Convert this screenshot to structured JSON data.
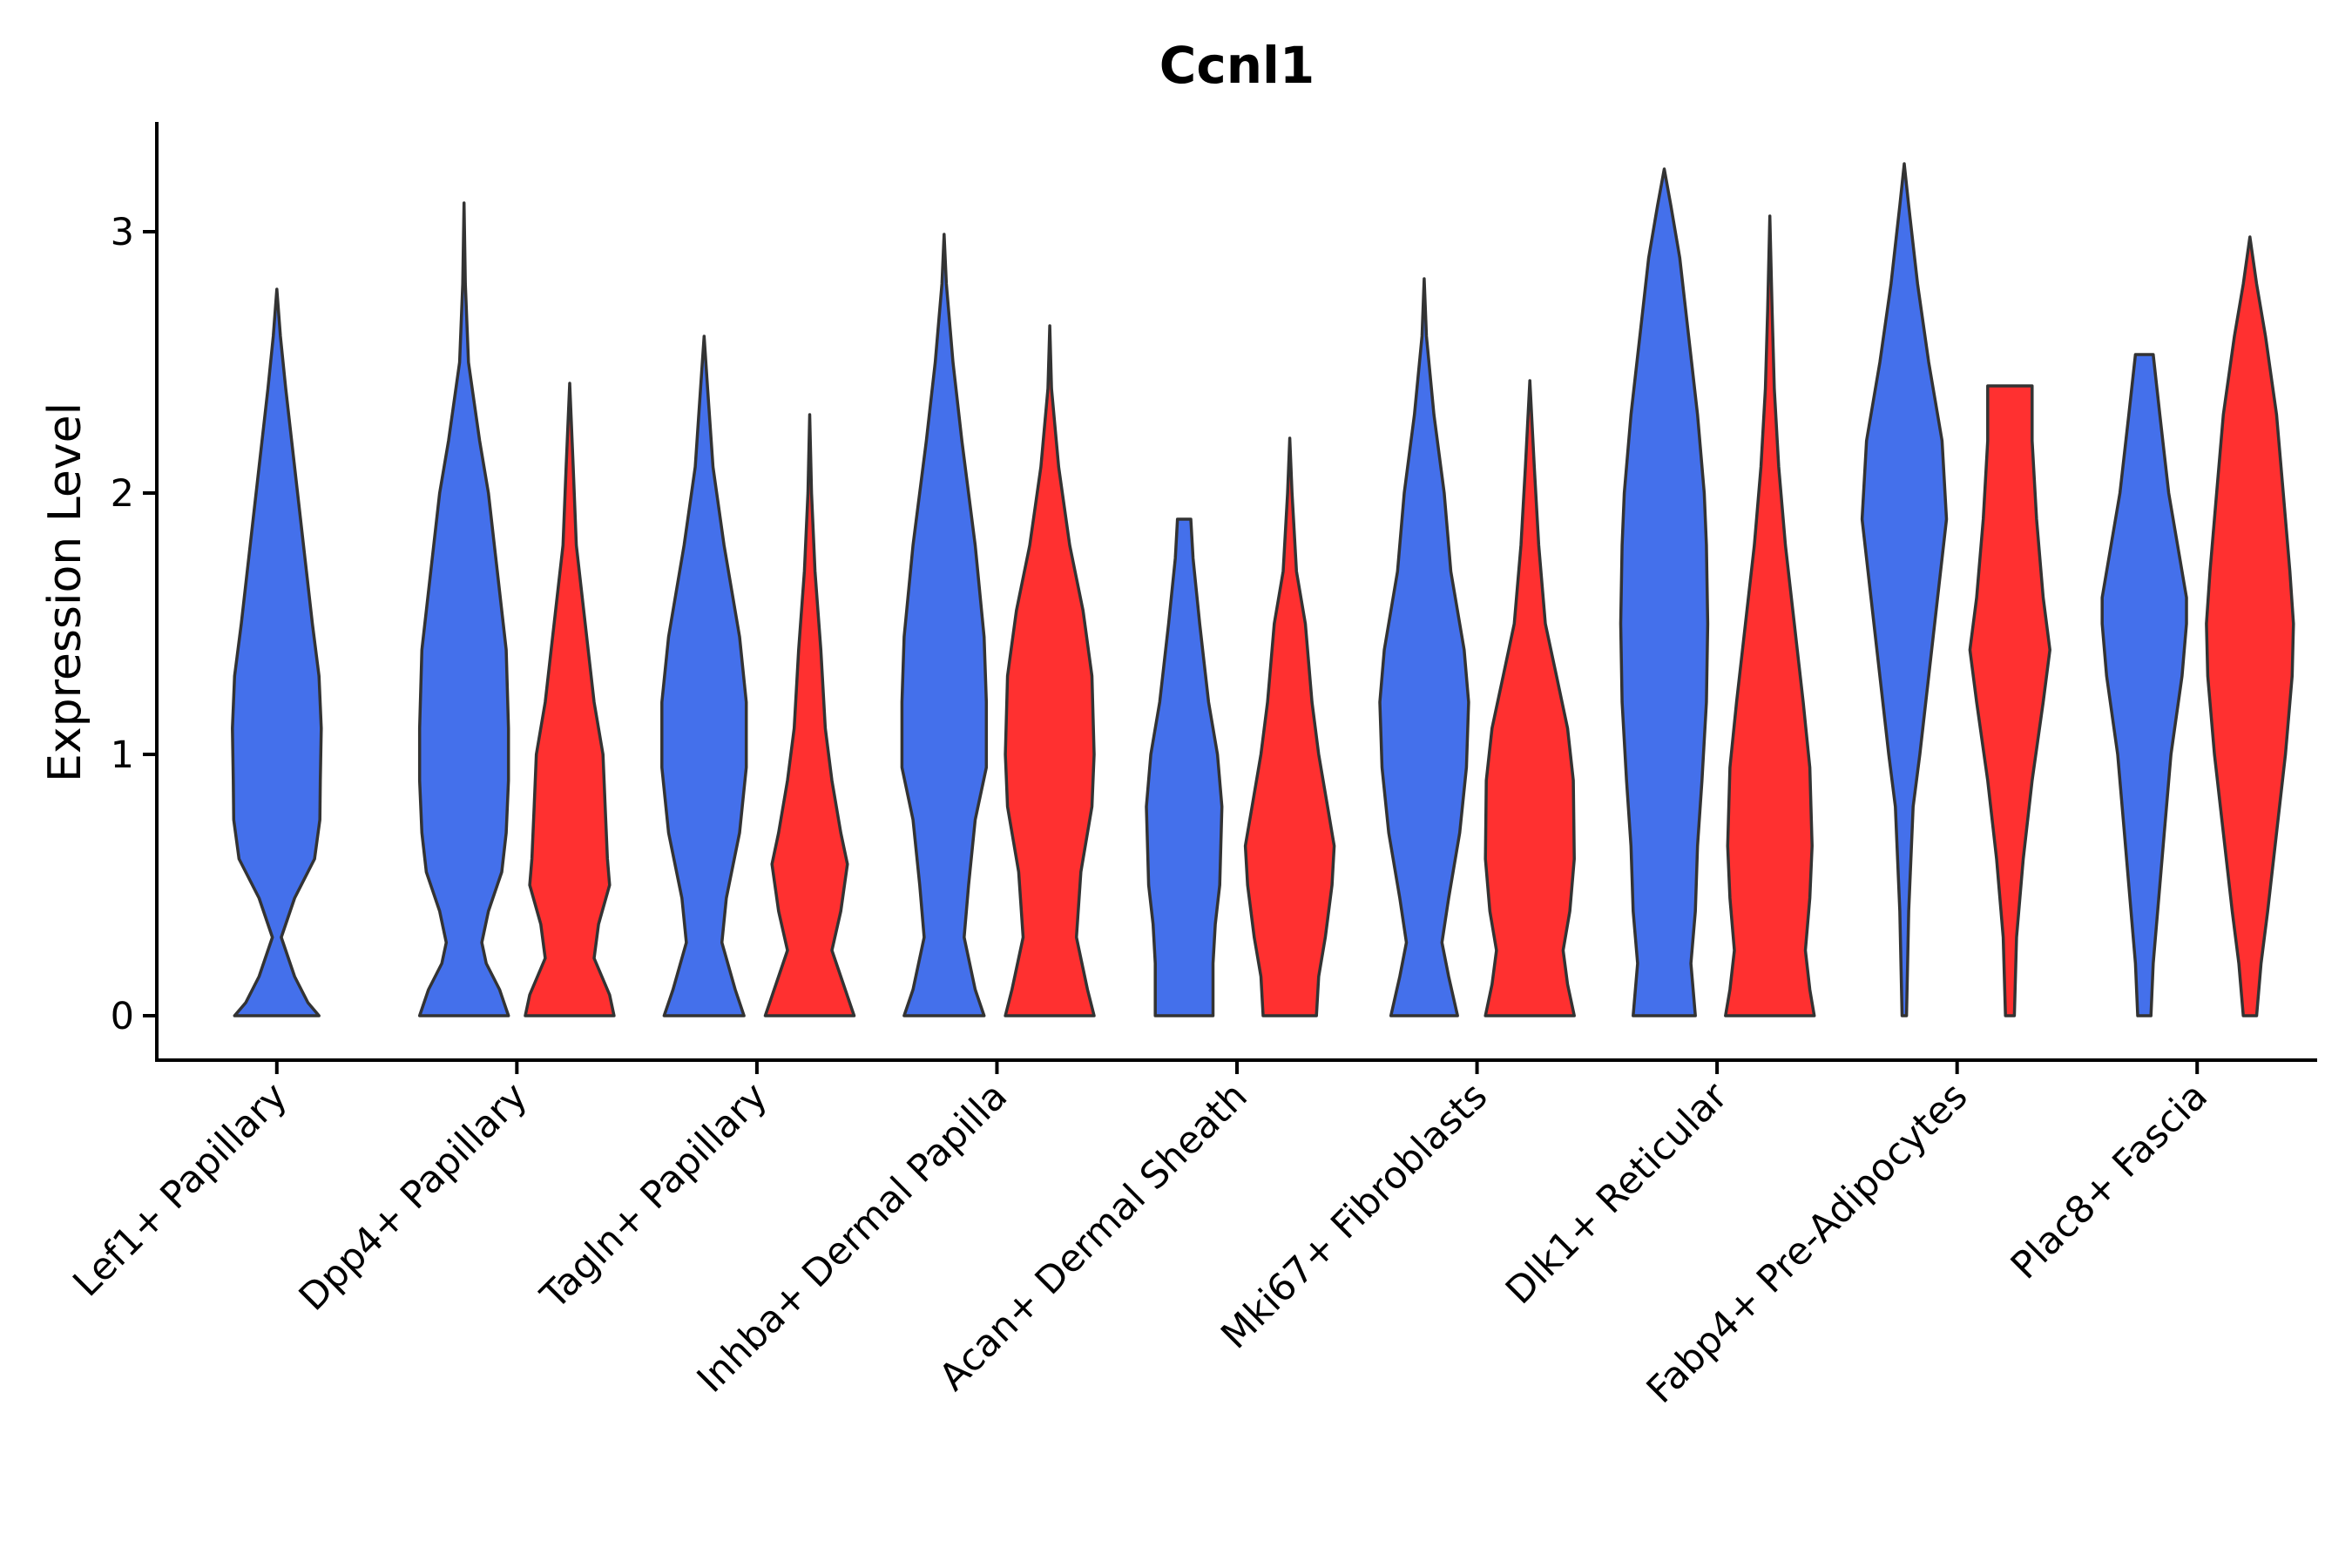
{
  "chart_data": {
    "type": "violin",
    "title": "Ccnl1",
    "xlabel": "",
    "ylabel": "Expression Level",
    "ylim": [
      -0.17,
      3.42
    ],
    "yticks": [
      0,
      1,
      2,
      3
    ],
    "grid": false,
    "colors": {
      "group_a": "#4470EB",
      "group_b": "#FF3030",
      "stroke": "#333333"
    },
    "categories": [
      "Lef1+ Papillary",
      "Dpp4+ Papillary",
      "Tagln+ Papillary",
      "Inhba+ Dermal Papilla",
      "Acan+ Dermal Sheath",
      "Mki67+ Fibroblasts",
      "Dlk1+ Reticular",
      "Fabp4+ Pre-Adipocytes",
      "Plac8+ Fascia"
    ],
    "violins": [
      {
        "category": 0,
        "group": "blue",
        "offset": 0.0,
        "profile": [
          [
            0,
            0.95
          ],
          [
            0.05,
            0.7
          ],
          [
            0.15,
            0.4
          ],
          [
            0.3,
            0.1
          ],
          [
            0.45,
            0.4
          ],
          [
            0.6,
            0.85
          ],
          [
            0.75,
            0.97
          ],
          [
            0.9,
            0.98
          ],
          [
            1.1,
            1.0
          ],
          [
            1.3,
            0.95
          ],
          [
            1.5,
            0.8
          ],
          [
            1.8,
            0.6
          ],
          [
            2.1,
            0.4
          ],
          [
            2.4,
            0.2
          ],
          [
            2.6,
            0.08
          ],
          [
            2.78,
            0
          ]
        ]
      },
      {
        "category": 1,
        "group": "blue",
        "offset": -0.22,
        "profile": [
          [
            0,
            1.0
          ],
          [
            0.1,
            0.8
          ],
          [
            0.2,
            0.5
          ],
          [
            0.28,
            0.4
          ],
          [
            0.4,
            0.55
          ],
          [
            0.55,
            0.85
          ],
          [
            0.7,
            0.95
          ],
          [
            0.9,
            1.0
          ],
          [
            1.1,
            1.0
          ],
          [
            1.4,
            0.95
          ],
          [
            1.7,
            0.75
          ],
          [
            2.0,
            0.55
          ],
          [
            2.2,
            0.35
          ],
          [
            2.5,
            0.1
          ],
          [
            2.8,
            0.03
          ],
          [
            3.11,
            0
          ]
        ]
      },
      {
        "category": 1,
        "group": "red",
        "offset": 0.22,
        "profile": [
          [
            0,
            1.0
          ],
          [
            0.08,
            0.9
          ],
          [
            0.22,
            0.55
          ],
          [
            0.35,
            0.65
          ],
          [
            0.5,
            0.9
          ],
          [
            0.6,
            0.85
          ],
          [
            0.8,
            0.8
          ],
          [
            1.0,
            0.75
          ],
          [
            1.2,
            0.55
          ],
          [
            1.5,
            0.35
          ],
          [
            1.8,
            0.15
          ],
          [
            2.1,
            0.08
          ],
          [
            2.42,
            0
          ]
        ]
      },
      {
        "category": 2,
        "group": "blue",
        "offset": -0.22,
        "profile": [
          [
            0,
            0.9
          ],
          [
            0.1,
            0.7
          ],
          [
            0.28,
            0.4
          ],
          [
            0.45,
            0.5
          ],
          [
            0.7,
            0.8
          ],
          [
            0.95,
            0.95
          ],
          [
            1.2,
            0.95
          ],
          [
            1.45,
            0.8
          ],
          [
            1.8,
            0.45
          ],
          [
            2.1,
            0.2
          ],
          [
            2.4,
            0.08
          ],
          [
            2.6,
            0
          ]
        ]
      },
      {
        "category": 2,
        "group": "red",
        "offset": 0.22,
        "profile": [
          [
            0,
            1.0
          ],
          [
            0.1,
            0.8
          ],
          [
            0.25,
            0.5
          ],
          [
            0.4,
            0.7
          ],
          [
            0.58,
            0.85
          ],
          [
            0.7,
            0.7
          ],
          [
            0.9,
            0.5
          ],
          [
            1.1,
            0.35
          ],
          [
            1.4,
            0.25
          ],
          [
            1.7,
            0.12
          ],
          [
            2.0,
            0.04
          ],
          [
            2.3,
            0
          ]
        ]
      },
      {
        "category": 3,
        "group": "blue",
        "offset": -0.22,
        "profile": [
          [
            0,
            0.9
          ],
          [
            0.1,
            0.7
          ],
          [
            0.3,
            0.45
          ],
          [
            0.5,
            0.55
          ],
          [
            0.75,
            0.7
          ],
          [
            0.95,
            0.95
          ],
          [
            1.2,
            0.95
          ],
          [
            1.45,
            0.9
          ],
          [
            1.8,
            0.7
          ],
          [
            2.2,
            0.4
          ],
          [
            2.5,
            0.2
          ],
          [
            2.8,
            0.05
          ],
          [
            2.99,
            0
          ]
        ]
      },
      {
        "category": 3,
        "group": "red",
        "offset": 0.22,
        "profile": [
          [
            0,
            1.0
          ],
          [
            0.1,
            0.85
          ],
          [
            0.3,
            0.6
          ],
          [
            0.55,
            0.7
          ],
          [
            0.8,
            0.95
          ],
          [
            1.0,
            1.0
          ],
          [
            1.3,
            0.95
          ],
          [
            1.55,
            0.75
          ],
          [
            1.8,
            0.45
          ],
          [
            2.1,
            0.2
          ],
          [
            2.4,
            0.04
          ],
          [
            2.64,
            0
          ]
        ]
      },
      {
        "category": 4,
        "group": "blue",
        "offset": -0.22,
        "profile": [
          [
            0,
            0.65
          ],
          [
            0.2,
            0.65
          ],
          [
            0.35,
            0.7
          ],
          [
            0.5,
            0.8
          ],
          [
            0.8,
            0.85
          ],
          [
            1.0,
            0.75
          ],
          [
            1.2,
            0.55
          ],
          [
            1.5,
            0.35
          ],
          [
            1.75,
            0.2
          ],
          [
            1.9,
            0.15
          ],
          [
            1.9,
            0
          ]
        ]
      },
      {
        "category": 4,
        "group": "red",
        "offset": 0.22,
        "profile": [
          [
            0,
            0.6
          ],
          [
            0.15,
            0.65
          ],
          [
            0.3,
            0.8
          ],
          [
            0.5,
            0.95
          ],
          [
            0.65,
            1.0
          ],
          [
            0.8,
            0.85
          ],
          [
            1.0,
            0.65
          ],
          [
            1.2,
            0.5
          ],
          [
            1.5,
            0.35
          ],
          [
            1.7,
            0.15
          ],
          [
            2.0,
            0.05
          ],
          [
            2.21,
            0
          ]
        ]
      },
      {
        "category": 5,
        "group": "blue",
        "offset": -0.22,
        "profile": [
          [
            0,
            0.75
          ],
          [
            0.15,
            0.55
          ],
          [
            0.28,
            0.4
          ],
          [
            0.45,
            0.55
          ],
          [
            0.7,
            0.8
          ],
          [
            0.95,
            0.95
          ],
          [
            1.2,
            1.0
          ],
          [
            1.4,
            0.9
          ],
          [
            1.7,
            0.6
          ],
          [
            2.0,
            0.45
          ],
          [
            2.3,
            0.22
          ],
          [
            2.6,
            0.05
          ],
          [
            2.82,
            0
          ]
        ]
      },
      {
        "category": 5,
        "group": "red",
        "offset": 0.22,
        "profile": [
          [
            0,
            1.0
          ],
          [
            0.12,
            0.85
          ],
          [
            0.25,
            0.75
          ],
          [
            0.4,
            0.9
          ],
          [
            0.6,
            1.0
          ],
          [
            0.9,
            0.98
          ],
          [
            1.1,
            0.85
          ],
          [
            1.3,
            0.6
          ],
          [
            1.5,
            0.35
          ],
          [
            1.8,
            0.2
          ],
          [
            2.1,
            0.1
          ],
          [
            2.43,
            0
          ]
        ]
      },
      {
        "category": 6,
        "group": "blue",
        "offset": -0.22,
        "profile": [
          [
            0,
            0.7
          ],
          [
            0.2,
            0.6
          ],
          [
            0.4,
            0.7
          ],
          [
            0.65,
            0.75
          ],
          [
            0.9,
            0.85
          ],
          [
            1.2,
            0.95
          ],
          [
            1.5,
            0.98
          ],
          [
            1.8,
            0.95
          ],
          [
            2.0,
            0.9
          ],
          [
            2.3,
            0.75
          ],
          [
            2.6,
            0.55
          ],
          [
            2.9,
            0.35
          ],
          [
            3.1,
            0.15
          ],
          [
            3.24,
            0
          ]
        ]
      },
      {
        "category": 6,
        "group": "red",
        "offset": 0.22,
        "profile": [
          [
            0,
            1.0
          ],
          [
            0.1,
            0.9
          ],
          [
            0.25,
            0.8
          ],
          [
            0.45,
            0.9
          ],
          [
            0.65,
            0.95
          ],
          [
            0.95,
            0.9
          ],
          [
            1.2,
            0.75
          ],
          [
            1.5,
            0.55
          ],
          [
            1.8,
            0.35
          ],
          [
            2.1,
            0.2
          ],
          [
            2.4,
            0.1
          ],
          [
            2.7,
            0.05
          ],
          [
            3.06,
            0
          ]
        ]
      },
      {
        "category": 7,
        "group": "blue",
        "offset": -0.22,
        "profile": [
          [
            0,
            0.05
          ],
          [
            0.4,
            0.1
          ],
          [
            0.8,
            0.2
          ],
          [
            1.0,
            0.35
          ],
          [
            1.3,
            0.55
          ],
          [
            1.6,
            0.75
          ],
          [
            1.9,
            0.95
          ],
          [
            2.2,
            0.85
          ],
          [
            2.5,
            0.55
          ],
          [
            2.8,
            0.3
          ],
          [
            3.1,
            0.1
          ],
          [
            3.26,
            0
          ]
        ]
      },
      {
        "category": 7,
        "group": "red",
        "offset": 0.22,
        "profile": [
          [
            0,
            0.1
          ],
          [
            0.3,
            0.15
          ],
          [
            0.6,
            0.3
          ],
          [
            0.9,
            0.5
          ],
          [
            1.2,
            0.75
          ],
          [
            1.4,
            0.9
          ],
          [
            1.6,
            0.75
          ],
          [
            1.9,
            0.6
          ],
          [
            2.2,
            0.5
          ],
          [
            2.41,
            0.5
          ],
          [
            2.41,
            0
          ]
        ]
      },
      {
        "category": 8,
        "group": "blue",
        "offset": -0.22,
        "profile": [
          [
            0,
            0.15
          ],
          [
            0.2,
            0.2
          ],
          [
            0.4,
            0.3
          ],
          [
            0.7,
            0.45
          ],
          [
            1.0,
            0.6
          ],
          [
            1.3,
            0.85
          ],
          [
            1.5,
            0.95
          ],
          [
            1.6,
            0.95
          ],
          [
            1.8,
            0.75
          ],
          [
            2.0,
            0.55
          ],
          [
            2.3,
            0.35
          ],
          [
            2.53,
            0.2
          ],
          [
            2.53,
            0
          ]
        ]
      },
      {
        "category": 8,
        "group": "red",
        "offset": 0.22,
        "profile": [
          [
            0,
            0.15
          ],
          [
            0.2,
            0.25
          ],
          [
            0.4,
            0.4
          ],
          [
            0.7,
            0.6
          ],
          [
            1.0,
            0.8
          ],
          [
            1.3,
            0.95
          ],
          [
            1.5,
            0.98
          ],
          [
            1.7,
            0.9
          ],
          [
            2.0,
            0.75
          ],
          [
            2.3,
            0.6
          ],
          [
            2.6,
            0.35
          ],
          [
            2.8,
            0.15
          ],
          [
            2.98,
            0
          ]
        ]
      }
    ]
  }
}
